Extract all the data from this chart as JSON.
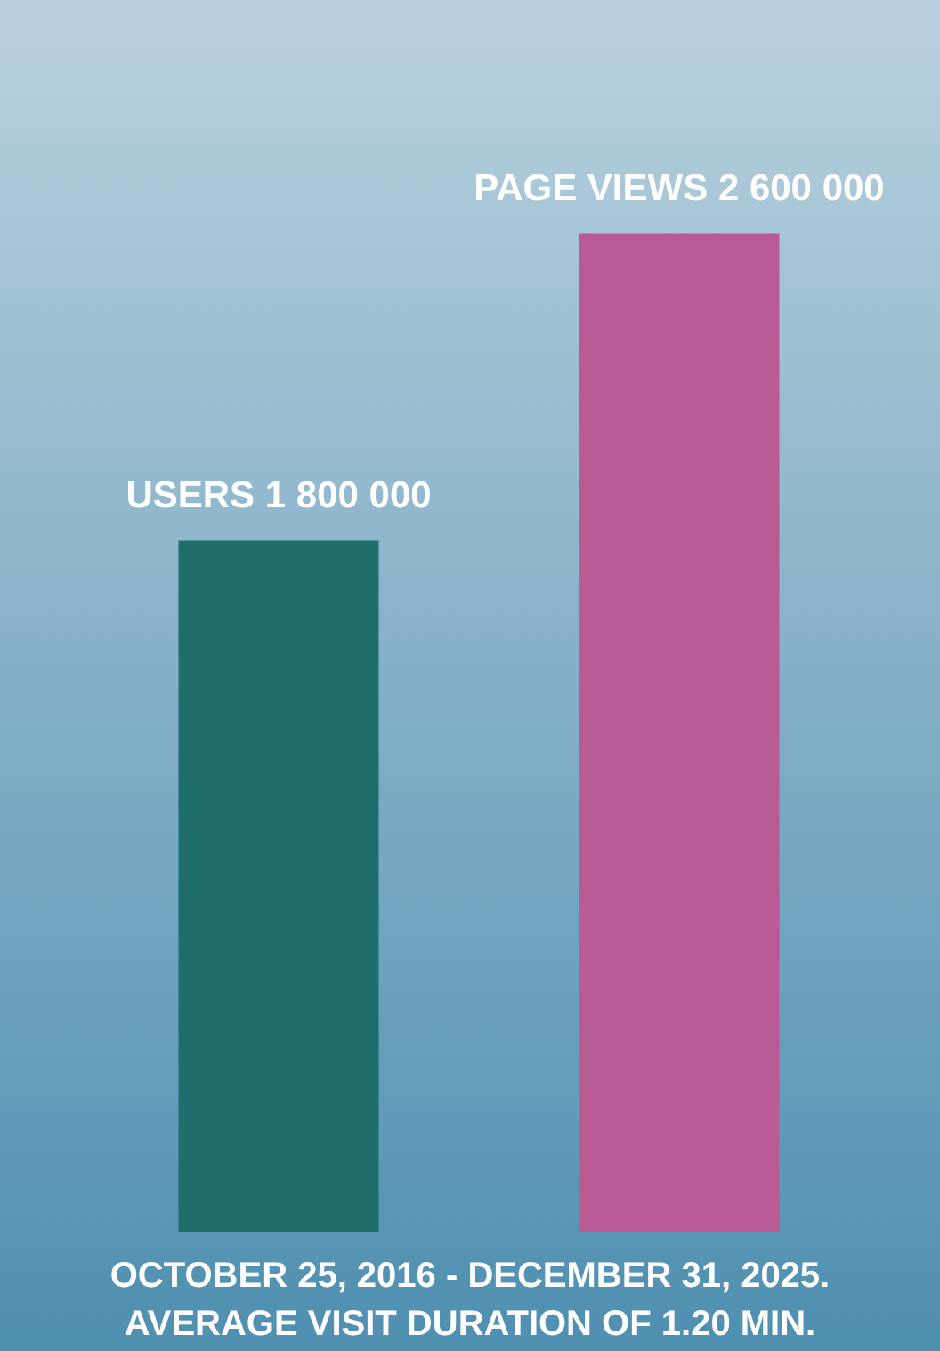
{
  "chart_data": {
    "type": "bar",
    "categories": [
      "USERS",
      "PAGE VIEWS"
    ],
    "values": [
      1800000,
      2600000
    ],
    "value_labels": [
      "1 800 000",
      "2 600 000"
    ],
    "colors": [
      "#1f6e6c",
      "#b85a93"
    ],
    "tick_labels": false,
    "grid": false,
    "legend": false,
    "annotations": [
      "OCTOBER 25, 2016 - DECEMBER 31, 2025.",
      "AVERAGE VISIT DURATION OF 1.20 MIN."
    ]
  }
}
